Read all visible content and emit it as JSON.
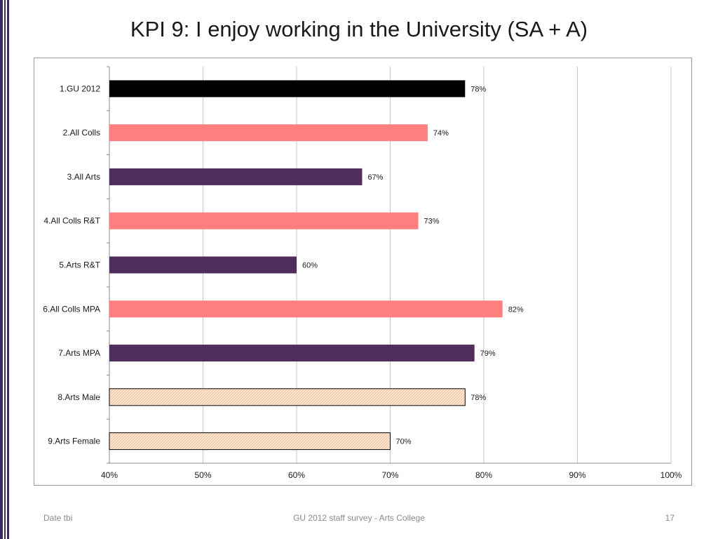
{
  "slide": {
    "title": "KPI 9: I enjoy working in the University (SA + A)",
    "footer_left": "Date tbi",
    "footer_center": "GU 2012 staff survey -  Arts College",
    "page_number": "17"
  },
  "colors": {
    "accent": "#3b2a55",
    "black": "#000000",
    "salmon": "#ff7f7f",
    "purple": "#4f2d5c",
    "peach": "#fde2cc",
    "grid": "#c8c8c8"
  },
  "chart_data": {
    "type": "bar",
    "orientation": "horizontal",
    "categories": [
      "1.GU 2012",
      "2.All Colls",
      "3.All Arts",
      "4.All Colls R&T",
      "5.Arts R&T",
      "6.All Colls MPA",
      "7.Arts MPA",
      "8.Arts Male",
      "9.Arts Female"
    ],
    "values": [
      78,
      74,
      67,
      73,
      60,
      82,
      79,
      78,
      70
    ],
    "data_labels": [
      "78%",
      "74%",
      "67%",
      "73%",
      "60%",
      "82%",
      "79%",
      "78%",
      "70%"
    ],
    "bar_styles": [
      "black",
      "salmon",
      "purple",
      "salmon",
      "purple",
      "salmon",
      "purple",
      "peach",
      "peach"
    ],
    "xlim": [
      40,
      100
    ],
    "xticks": [
      40,
      50,
      60,
      70,
      80,
      90,
      100
    ],
    "xtick_labels": [
      "40%",
      "50%",
      "60%",
      "70%",
      "80%",
      "90%",
      "100%"
    ],
    "grid": true,
    "title": "",
    "xlabel": "",
    "ylabel": ""
  }
}
